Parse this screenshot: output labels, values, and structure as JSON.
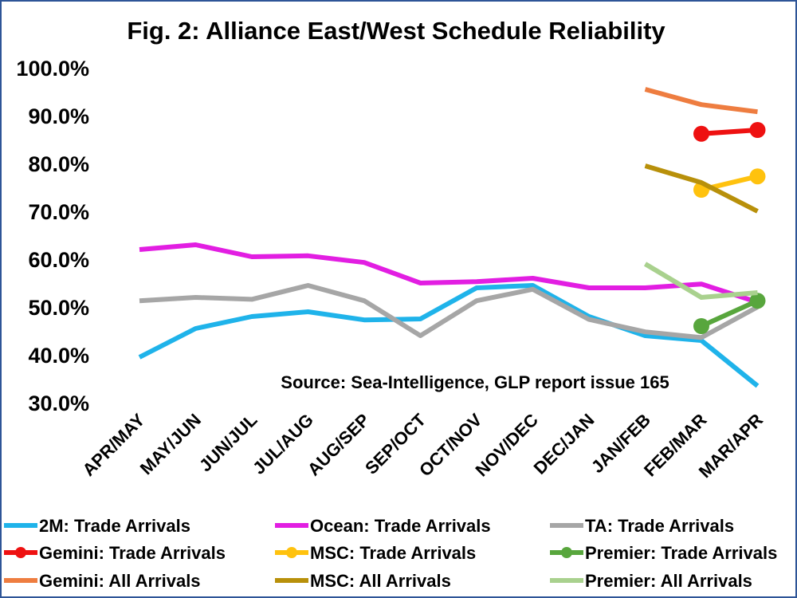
{
  "chart_data": {
    "type": "line",
    "title": "Fig. 2: Alliance East/West Schedule Reliability",
    "annotation": "Source: Sea-Intelligence, GLP report issue 165",
    "categories": [
      "APR/MAY",
      "MAY/JUN",
      "JUN/JUL",
      "JUL/AUG",
      "AUG/SEP",
      "SEP/OCT",
      "OCT/NOV",
      "NOV/DEC",
      "DEC/JAN",
      "JAN/FEB",
      "FEB/MAR",
      "MAR/APR"
    ],
    "y_ticks": [
      "100.0%",
      "90.0%",
      "80.0%",
      "70.0%",
      "60.0%",
      "50.0%",
      "40.0%",
      "30.0%"
    ],
    "ylim": [
      30,
      100
    ],
    "y_unit": "%",
    "grid": false,
    "legend_position": "bottom",
    "series": [
      {
        "name": "2M: Trade Arrivals",
        "color": "#1fb3ea",
        "markers": false,
        "values": [
          39.5,
          45.5,
          48.0,
          49.0,
          47.3,
          47.5,
          54.0,
          54.5,
          48.0,
          44.0,
          43.0,
          33.5
        ]
      },
      {
        "name": "Ocean: Trade Arrivals",
        "color": "#e21ee2",
        "markers": false,
        "values": [
          62.0,
          63.0,
          60.5,
          60.7,
          59.3,
          55.0,
          55.3,
          56.0,
          54.0,
          54.0,
          54.8,
          51.0
        ]
      },
      {
        "name": "TA: Trade Arrivals",
        "color": "#a6a6a6",
        "markers": false,
        "values": [
          51.3,
          52.0,
          51.6,
          54.5,
          51.3,
          44.0,
          51.3,
          53.7,
          47.4,
          44.8,
          43.6,
          50.0
        ]
      },
      {
        "name": "Gemini: Trade Arrivals",
        "color": "#ee1111",
        "markers": true,
        "values": [
          null,
          null,
          null,
          null,
          null,
          null,
          null,
          null,
          null,
          null,
          86.2,
          87.0
        ]
      },
      {
        "name": "MSC: Trade Arrivals",
        "color": "#ffc20e",
        "markers": true,
        "values": [
          null,
          null,
          null,
          null,
          null,
          null,
          null,
          null,
          null,
          null,
          74.5,
          77.3
        ]
      },
      {
        "name": "Premier: Trade Arrivals",
        "color": "#58a63d",
        "markers": true,
        "values": [
          null,
          null,
          null,
          null,
          null,
          null,
          null,
          null,
          null,
          null,
          46.0,
          51.3
        ]
      },
      {
        "name": "Gemini: All Arrivals",
        "color": "#ee7d40",
        "markers": false,
        "values": [
          null,
          null,
          null,
          null,
          null,
          null,
          null,
          null,
          null,
          95.5,
          92.3,
          90.8
        ]
      },
      {
        "name": "MSC: All Arrivals",
        "color": "#b8900a",
        "markers": false,
        "values": [
          null,
          null,
          null,
          null,
          null,
          null,
          null,
          null,
          null,
          79.5,
          76.0,
          70.0
        ]
      },
      {
        "name": "Premier: All Arrivals",
        "color": "#a9d18e",
        "markers": false,
        "values": [
          null,
          null,
          null,
          null,
          null,
          null,
          null,
          null,
          null,
          59.0,
          52.0,
          53.0
        ]
      }
    ]
  }
}
